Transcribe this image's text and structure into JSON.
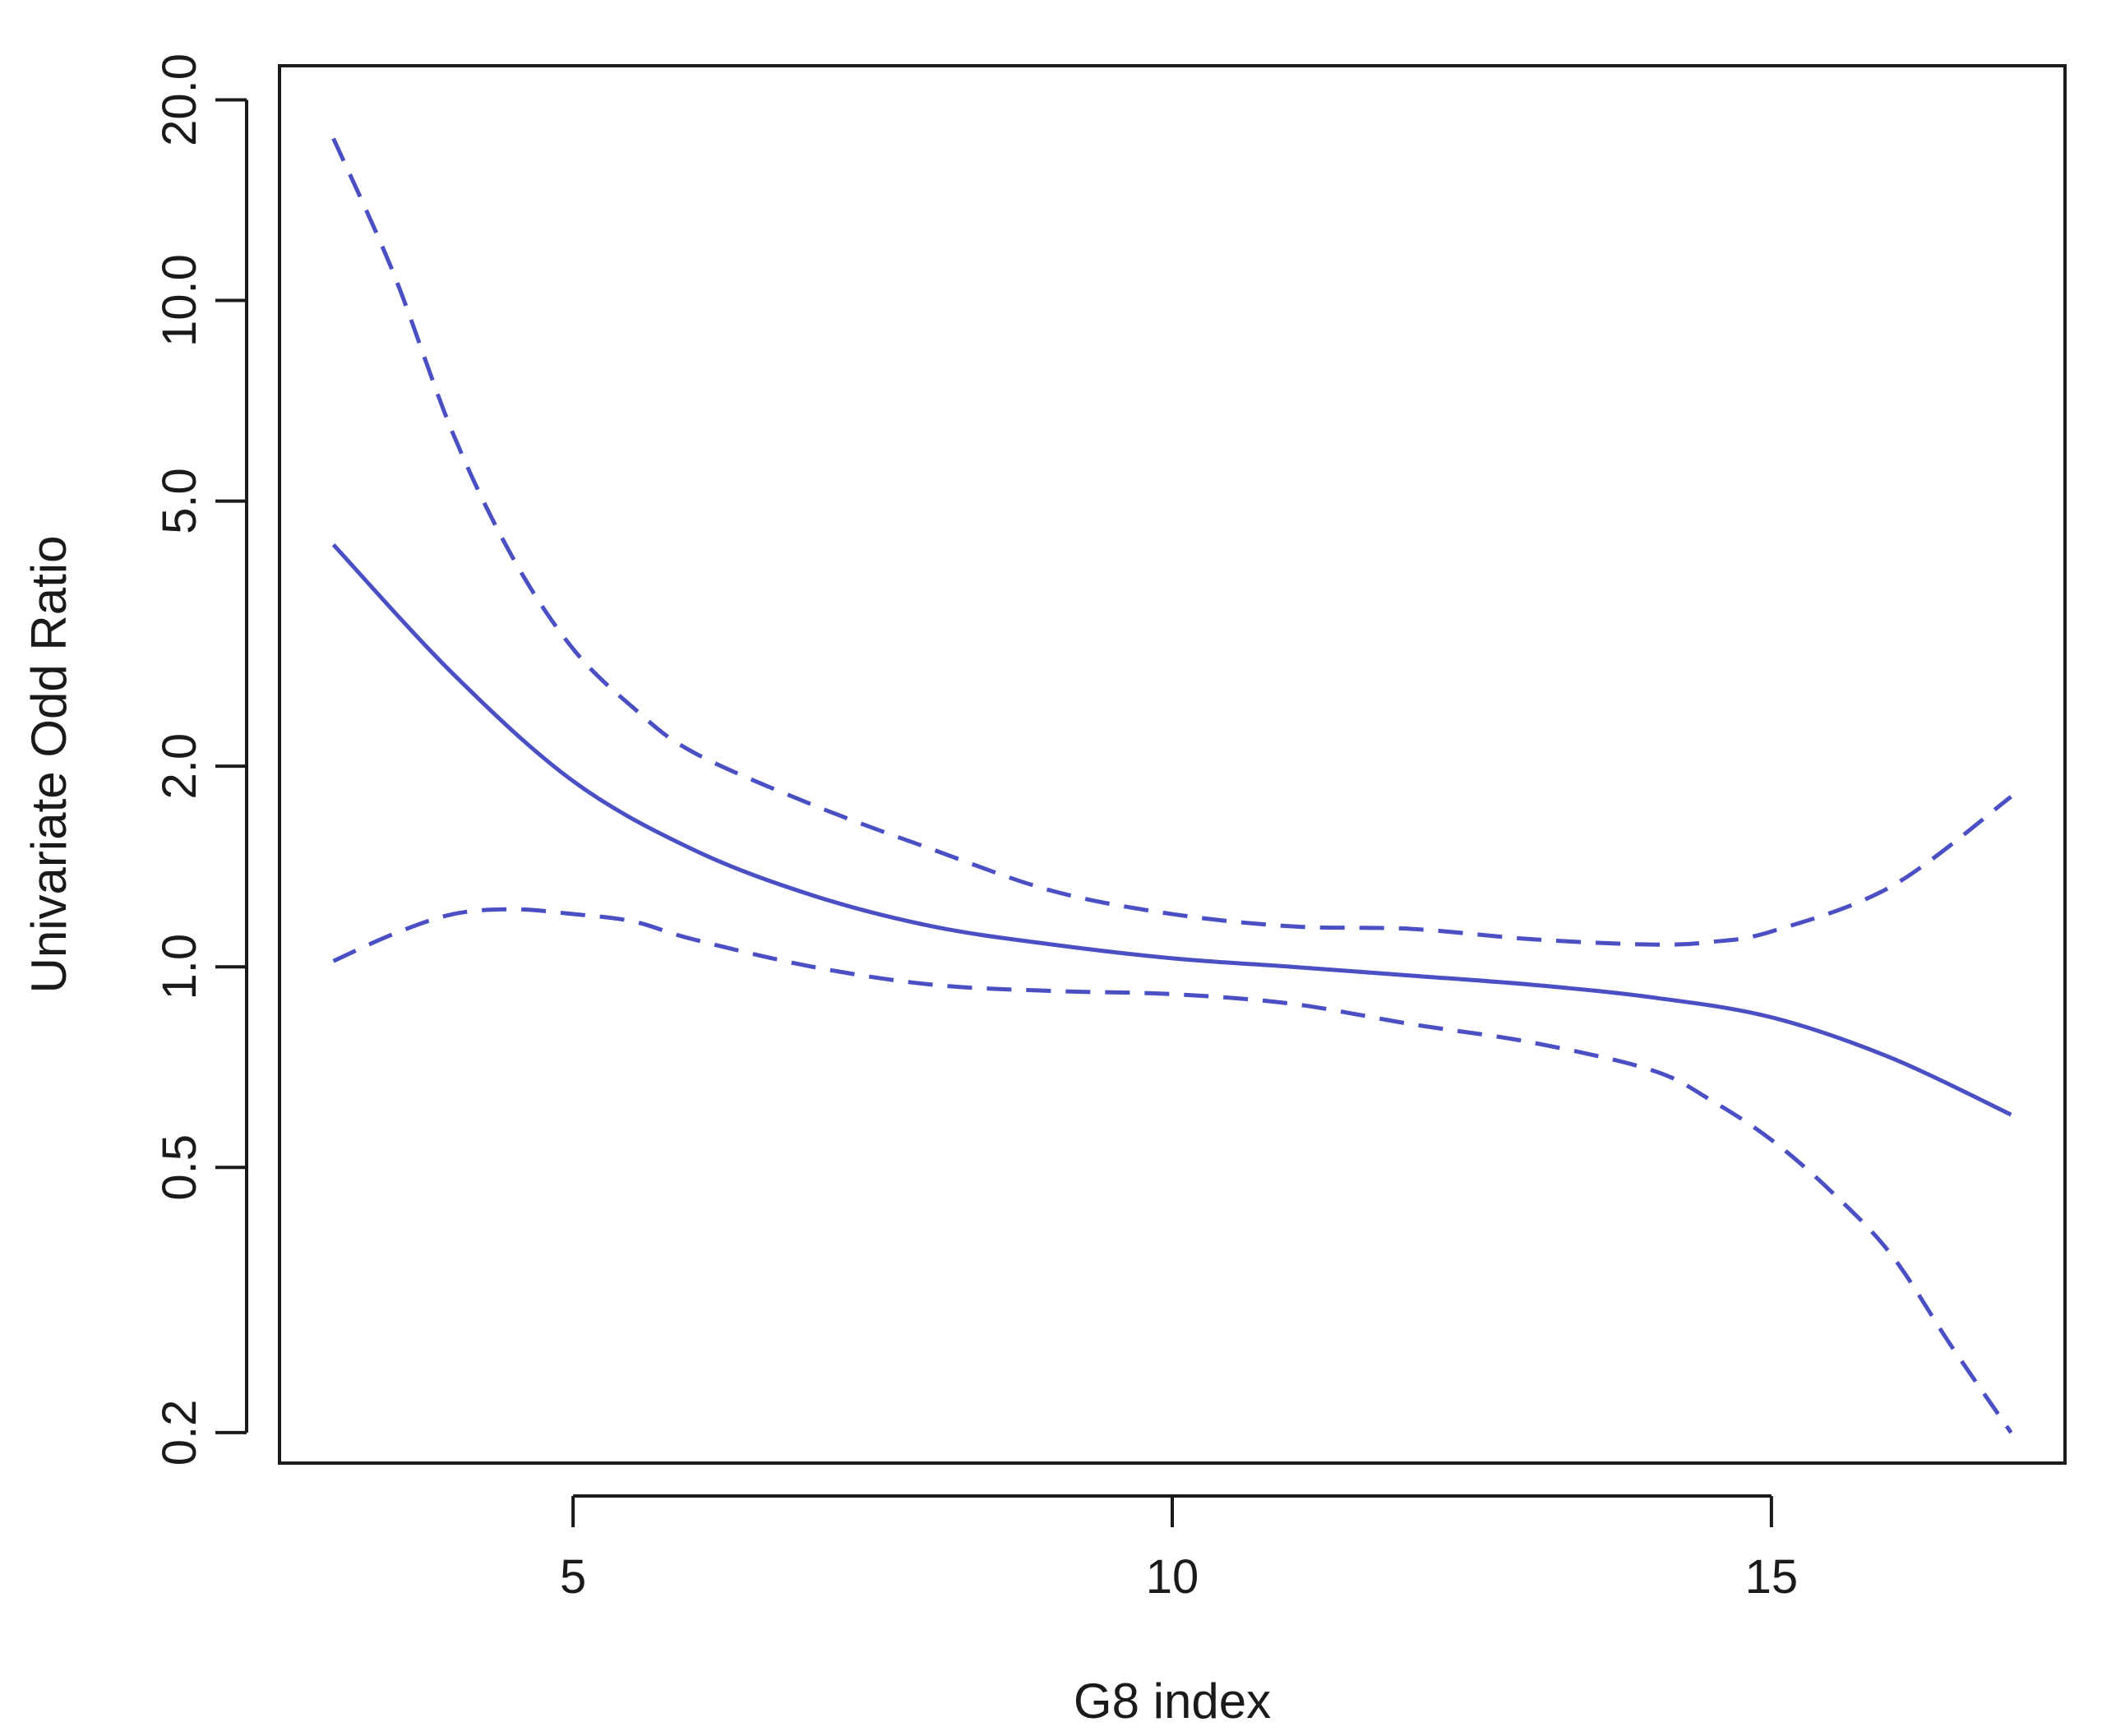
{
  "chart_data": {
    "type": "line",
    "title": "",
    "xlabel": "G8 index",
    "ylabel": "Univariate Odd Ratio",
    "y_scale": "log",
    "xlim": [
      2.55,
      17.45
    ],
    "ylim": [
      0.18,
      22.5
    ],
    "x_ticks": [
      5,
      10,
      15
    ],
    "x_tick_labels": [
      "5",
      "10",
      "15"
    ],
    "y_ticks": [
      0.2,
      0.5,
      1.0,
      2.0,
      5.0,
      10.0,
      20.0
    ],
    "y_tick_labels": [
      "0.2",
      "0.5",
      "1.0",
      "2.0",
      "5.0",
      "10.0",
      "20.0"
    ],
    "grid": false,
    "legend": "none",
    "line_color": "#4a4fc4",
    "series": [
      {
        "role": "estimate",
        "line_style": "solid",
        "x": [
          3,
          4,
          5,
          6,
          7,
          8,
          9,
          10,
          11,
          12,
          13,
          14,
          15,
          16,
          17
        ],
        "y": [
          4.3,
          2.75,
          1.9,
          1.5,
          1.28,
          1.15,
          1.08,
          1.03,
          1.0,
          0.97,
          0.94,
          0.9,
          0.84,
          0.73,
          0.6
        ]
      },
      {
        "role": "upper",
        "line_style": "dashed",
        "x": [
          3,
          3.5,
          4,
          4.5,
          5,
          5.5,
          6,
          7,
          8,
          9,
          10,
          11,
          12,
          13,
          14,
          14.5,
          15,
          16,
          17
        ],
        "y": [
          17.5,
          11,
          6.3,
          4.1,
          3.0,
          2.45,
          2.1,
          1.75,
          1.5,
          1.3,
          1.2,
          1.15,
          1.14,
          1.1,
          1.08,
          1.09,
          1.13,
          1.32,
          1.8
        ]
      },
      {
        "role": "lower",
        "line_style": "dashed",
        "x": [
          3,
          3.5,
          4,
          4.5,
          5,
          5.5,
          6,
          7,
          8,
          9,
          10,
          11,
          12,
          13,
          14,
          14.5,
          15,
          15.5,
          16,
          16.5,
          17
        ],
        "y": [
          1.02,
          1.12,
          1.2,
          1.22,
          1.2,
          1.17,
          1.1,
          1.0,
          0.94,
          0.92,
          0.91,
          0.88,
          0.82,
          0.77,
          0.7,
          0.63,
          0.55,
          0.46,
          0.37,
          0.27,
          0.2
        ]
      }
    ]
  }
}
